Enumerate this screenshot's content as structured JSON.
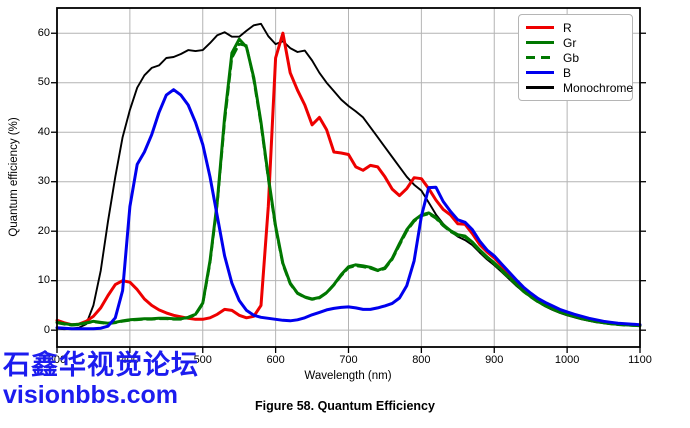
{
  "caption": "Figure 58. Quantum Efficiency",
  "watermark": {
    "line1": "石鑫华视觉论坛",
    "line2": "visionbbs.com",
    "color": "#1c1cef"
  },
  "chart_data": {
    "type": "line",
    "title": "",
    "xlabel": "Wavelength (nm)",
    "ylabel": "Quantum efficiency (%)",
    "xlim": [
      300,
      1100
    ],
    "ylim": [
      -3.4,
      65.1
    ],
    "xticks": [
      300,
      400,
      500,
      600,
      700,
      800,
      900,
      1000,
      1100
    ],
    "yticks": [
      0,
      10,
      20,
      30,
      40,
      50,
      60
    ],
    "grid": true,
    "grid_color": "#b4b4b4",
    "frame_color": "#000000",
    "legend_position": "top-right",
    "x_start": 300,
    "x_step": 10,
    "draw_order": [
      "Monochrome",
      "R",
      "Gr",
      "Gb",
      "B"
    ],
    "series": [
      {
        "name": "R",
        "color": "#ee0000",
        "dash": null,
        "width": 3,
        "values": [
          2.0,
          1.5,
          1.1,
          1.2,
          1.8,
          2.8,
          4.5,
          7.0,
          9.2,
          10.0,
          9.7,
          8.2,
          6.3,
          5.0,
          4.1,
          3.5,
          3.0,
          2.7,
          2.4,
          2.2,
          2.2,
          2.5,
          3.2,
          4.2,
          4.0,
          3.0,
          2.5,
          2.8,
          5.0,
          25.0,
          55.0,
          60.0,
          52.0,
          48.5,
          45.5,
          41.5,
          43.0,
          40.5,
          36.0,
          35.8,
          35.5,
          33.0,
          32.3,
          33.3,
          33.0,
          31.0,
          28.5,
          27.2,
          28.6,
          30.8,
          30.6,
          28.6,
          26.3,
          24.4,
          23.3,
          21.5,
          21.4,
          19.5,
          17.3,
          15.8,
          14.6,
          13.0,
          11.5,
          9.9,
          8.4,
          7.2,
          6.2,
          5.3,
          4.6,
          4.0,
          3.5,
          3.0,
          2.6,
          2.2,
          1.9,
          1.7,
          1.5,
          1.3,
          1.2,
          1.1,
          1.0
        ]
      },
      {
        "name": "Gr",
        "color": "#007700",
        "dash": null,
        "width": 3,
        "values": [
          1.6,
          1.3,
          1.1,
          1.2,
          1.5,
          1.8,
          1.6,
          1.4,
          1.6,
          1.9,
          2.1,
          2.2,
          2.3,
          2.3,
          2.4,
          2.4,
          2.3,
          2.3,
          2.6,
          3.2,
          5.5,
          14.0,
          26.0,
          43.0,
          56.0,
          58.8,
          57.2,
          51.0,
          42.0,
          31.0,
          21.0,
          13.5,
          9.5,
          7.5,
          6.7,
          6.3,
          6.6,
          7.6,
          9.2,
          11.2,
          12.8,
          13.2,
          13.0,
          12.7,
          12.1,
          12.6,
          14.5,
          17.5,
          20.3,
          22.2,
          23.3,
          23.7,
          22.8,
          21.3,
          20.1,
          19.3,
          19.0,
          17.8,
          16.2,
          14.8,
          13.6,
          12.2,
          10.8,
          9.3,
          7.9,
          6.8,
          5.8,
          5.0,
          4.3,
          3.7,
          3.2,
          2.8,
          2.4,
          2.0,
          1.8,
          1.5,
          1.3,
          1.2,
          1.1,
          1.0,
          0.9
        ]
      },
      {
        "name": "Gb",
        "color": "#007700",
        "dash": "8,5",
        "width": 2.6,
        "values": [
          1.5,
          1.2,
          1.0,
          1.1,
          1.4,
          1.7,
          1.5,
          1.3,
          1.5,
          1.8,
          2.0,
          2.1,
          2.2,
          2.2,
          2.3,
          2.3,
          2.2,
          2.2,
          2.5,
          3.1,
          5.3,
          13.5,
          25.5,
          42.0,
          55.0,
          57.8,
          57.5,
          50.5,
          41.5,
          30.5,
          20.6,
          13.2,
          9.3,
          7.4,
          6.6,
          6.2,
          6.5,
          7.5,
          9.1,
          11.0,
          12.6,
          13.0,
          12.8,
          12.5,
          12.0,
          12.4,
          14.3,
          17.2,
          20.0,
          22.0,
          23.1,
          23.5,
          22.6,
          21.1,
          19.9,
          19.1,
          18.8,
          17.6,
          16.0,
          14.6,
          13.4,
          12.0,
          10.6,
          9.2,
          7.8,
          6.7,
          5.7,
          4.9,
          4.2,
          3.6,
          3.1,
          2.7,
          2.3,
          2.0,
          1.7,
          1.5,
          1.3,
          1.1,
          1.0,
          0.95,
          0.9
        ]
      },
      {
        "name": "B",
        "color": "#0000ee",
        "dash": null,
        "width": 3,
        "values": [
          0.5,
          0.4,
          0.3,
          0.3,
          0.3,
          0.3,
          0.4,
          0.8,
          2.5,
          8.0,
          25.0,
          33.5,
          36.0,
          39.5,
          44.0,
          47.5,
          48.6,
          47.5,
          45.5,
          42.0,
          37.5,
          31.0,
          23.0,
          15.0,
          9.5,
          6.0,
          4.0,
          3.0,
          2.6,
          2.4,
          2.2,
          2.0,
          1.9,
          2.1,
          2.5,
          3.1,
          3.6,
          4.1,
          4.4,
          4.6,
          4.7,
          4.5,
          4.2,
          4.2,
          4.5,
          4.9,
          5.4,
          6.5,
          9.0,
          14.0,
          23.0,
          28.8,
          28.9,
          26.0,
          24.0,
          22.3,
          21.8,
          20.3,
          18.0,
          16.2,
          15.0,
          13.4,
          11.8,
          10.2,
          8.7,
          7.5,
          6.4,
          5.6,
          4.9,
          4.2,
          3.7,
          3.2,
          2.8,
          2.4,
          2.1,
          1.8,
          1.6,
          1.4,
          1.3,
          1.2,
          1.1
        ]
      },
      {
        "name": "Monochrome",
        "color": "#000000",
        "dash": null,
        "width": 1.9,
        "values": [
          0.3,
          0.2,
          0.3,
          0.5,
          1.2,
          5.0,
          12.0,
          22.0,
          31.0,
          39.0,
          44.5,
          49.0,
          51.5,
          53.0,
          53.5,
          55.0,
          55.2,
          55.8,
          56.6,
          56.4,
          56.6,
          58.0,
          59.6,
          60.2,
          59.3,
          59.3,
          60.5,
          61.6,
          61.9,
          59.4,
          57.8,
          58.4,
          57.0,
          56.2,
          56.5,
          54.5,
          52.0,
          50.0,
          48.3,
          46.6,
          45.3,
          44.2,
          43.0,
          41.0,
          39.0,
          37.0,
          35.0,
          33.0,
          31.0,
          29.4,
          28.2,
          25.8,
          23.4,
          21.5,
          20.0,
          18.9,
          18.2,
          17.2,
          15.7,
          14.3,
          13.1,
          11.8,
          10.4,
          9.0,
          7.8,
          6.7,
          5.7,
          4.8,
          4.1,
          3.5,
          3.0,
          2.6,
          2.2,
          1.9,
          1.6,
          1.4,
          1.2,
          1.1,
          1.0,
          0.9,
          0.85
        ]
      }
    ]
  }
}
